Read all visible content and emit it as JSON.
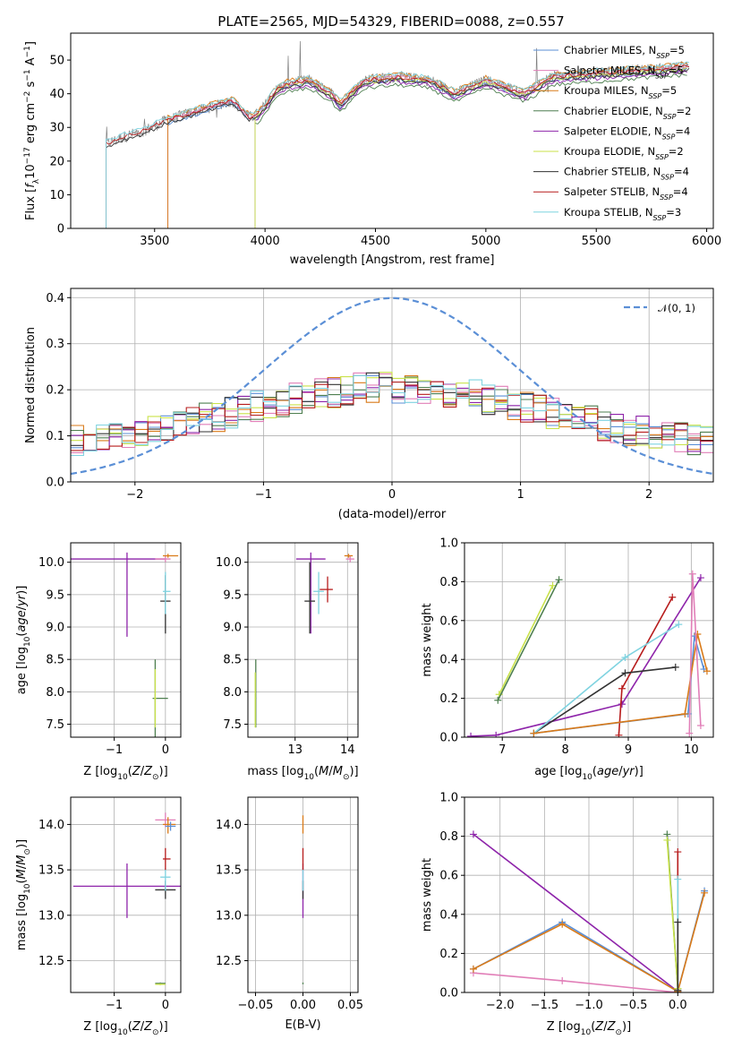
{
  "figure_title": "PLATE=2565, MJD=54329, FIBERID=0088, z=0.557",
  "palette": {
    "Chabrier MILES": "#5b8fd6",
    "Salpeter MILES": "#e17fb8",
    "Kroupa MILES": "#d97a18",
    "Chabrier ELODIE": "#4e7f50",
    "Salpeter ELODIE": "#8e24aa",
    "Kroupa ELODIE": "#c9e24a",
    "Chabrier STELIB": "#333333",
    "Salpeter STELIB": "#b71c1c",
    "Kroupa STELIB": "#7fd3e0"
  },
  "chart_data": [
    {
      "id": "spectrum",
      "type": "line",
      "title": "PLATE=2565, MJD=54329, FIBERID=0088, z=0.557",
      "xlabel": "wavelength [Angstrom, rest frame]",
      "ylabel": "Flux [f_λ 10^-17 erg cm^-2 s^-1 A^-1]",
      "xlim": [
        3120,
        6030
      ],
      "ylim": [
        0,
        58
      ],
      "xticks": [
        3500,
        4000,
        4500,
        5000,
        5500,
        6000
      ],
      "yticks": [
        0,
        10,
        20,
        30,
        40,
        50
      ],
      "grid": false,
      "legend": "top-right",
      "legend_entries": [
        {
          "text": "Chabrier MILES, N_SSP=5",
          "base": "Chabrier MILES, N",
          "sub": "SSP",
          "tail": "=5",
          "model": "Chabrier MILES"
        },
        {
          "text": "Salpeter MILES, N_SSP=5",
          "base": "Salpeter MILES, N",
          "sub": "SSP",
          "tail": "=5",
          "model": "Salpeter MILES"
        },
        {
          "text": "Kroupa MILES, N_SSP=5",
          "base": "Kroupa MILES, N",
          "sub": "SSP",
          "tail": "=5",
          "model": "Kroupa MILES"
        },
        {
          "text": "Chabrier ELODIE, N_SSP=2",
          "base": "Chabrier ELODIE, N",
          "sub": "SSP",
          "tail": "=2",
          "model": "Chabrier ELODIE"
        },
        {
          "text": "Salpeter ELODIE, N_SSP=4",
          "base": "Salpeter ELODIE, N",
          "sub": "SSP",
          "tail": "=4",
          "model": "Salpeter ELODIE"
        },
        {
          "text": "Kroupa ELODIE, N_SSP=2",
          "base": "Kroupa ELODIE, N",
          "sub": "SSP",
          "tail": "=2",
          "model": "Kroupa ELODIE"
        },
        {
          "text": "Chabrier STELIB, N_SSP=4",
          "base": "Chabrier STELIB, N",
          "sub": "SSP",
          "tail": "=4",
          "model": "Chabrier STELIB"
        },
        {
          "text": "Salpeter STELIB, N_SSP=4",
          "base": "Salpeter STELIB, N",
          "sub": "SSP",
          "tail": "=4",
          "model": "Salpeter STELIB"
        },
        {
          "text": "Kroupa STELIB, N_SSP=3",
          "base": "Kroupa STELIB, N",
          "sub": "SSP",
          "tail": "=3",
          "model": "Kroupa STELIB"
        }
      ],
      "data_start_x": [
        {
          "model": "MILES",
          "x": 3560
        },
        {
          "model": "ELODIE",
          "x": 3955
        },
        {
          "model": "STELIB",
          "x": 3280
        }
      ],
      "continuum_points": [
        {
          "x": 3280,
          "y": 25
        },
        {
          "x": 3350,
          "y": 27
        },
        {
          "x": 3450,
          "y": 29
        },
        {
          "x": 3550,
          "y": 32
        },
        {
          "x": 3650,
          "y": 34
        },
        {
          "x": 3750,
          "y": 36
        },
        {
          "x": 3850,
          "y": 38
        },
        {
          "x": 3930,
          "y": 33
        },
        {
          "x": 3970,
          "y": 34
        },
        {
          "x": 4050,
          "y": 41
        },
        {
          "x": 4100,
          "y": 43
        },
        {
          "x": 4200,
          "y": 44
        },
        {
          "x": 4300,
          "y": 40
        },
        {
          "x": 4340,
          "y": 37
        },
        {
          "x": 4450,
          "y": 44
        },
        {
          "x": 4600,
          "y": 45
        },
        {
          "x": 4750,
          "y": 44
        },
        {
          "x": 4861,
          "y": 40
        },
        {
          "x": 5000,
          "y": 44
        },
        {
          "x": 5175,
          "y": 40
        },
        {
          "x": 5300,
          "y": 45
        },
        {
          "x": 5500,
          "y": 46
        },
        {
          "x": 5700,
          "y": 47
        },
        {
          "x": 5900,
          "y": 48
        }
      ]
    },
    {
      "id": "residuals",
      "type": "bar",
      "xlabel": "(data-model)/error",
      "ylabel": "Normed distribution",
      "xlim": [
        -2.5,
        2.5
      ],
      "ylim": [
        0,
        0.42
      ],
      "xticks": [
        -2,
        -1,
        0,
        1,
        2
      ],
      "yticks": [
        0.0,
        0.1,
        0.2,
        0.3,
        0.4
      ],
      "grid": true,
      "legend": "top-right",
      "legend_label": "𝒩(0, 1)",
      "reference_curve": {
        "name": "𝒩(0, 1)",
        "mean": 0,
        "sigma": 1,
        "style": "dashed"
      },
      "bins": 50
    },
    {
      "id": "age-vs-Z",
      "type": "scatter",
      "xlabel": "Z [log10(Z/Z⊙)]",
      "ylabel": "age [log10(age/yr)]",
      "xlim": [
        -1.85,
        0.3
      ],
      "ylim": [
        7.3,
        10.3
      ],
      "xticks": [
        -1,
        0
      ],
      "yticks": [
        7.5,
        8.0,
        8.5,
        9.0,
        9.5,
        10.0
      ],
      "grid": true,
      "points": [
        {
          "model": "Salpeter ELODIE",
          "x": -0.75,
          "y": 10.05,
          "xerr": [
            1.75,
            0.75
          ],
          "yerr": [
            1.2,
            0.1
          ]
        },
        {
          "model": "Chabrier STELIB",
          "x": 0.0,
          "y": 9.4,
          "xerr": [
            0.1,
            0.1
          ],
          "yerr": [
            0.5,
            0.4
          ]
        },
        {
          "model": "Kroupa STELIB",
          "x": 0.0,
          "y": 9.55,
          "xerr": [
            0.05,
            0.1
          ],
          "yerr": [
            0.35,
            0.3
          ]
        },
        {
          "model": "Salpeter MILES",
          "x": 0.0,
          "y": 10.05,
          "xerr": [
            0.2,
            0.1
          ],
          "yerr": [
            0.05,
            0.05
          ]
        },
        {
          "model": "Kroupa MILES",
          "x": 0.05,
          "y": 10.1,
          "xerr": [
            0.1,
            0.2
          ],
          "yerr": [
            0.03,
            0.03
          ]
        },
        {
          "model": "Chabrier ELODIE",
          "x": -0.2,
          "y": 7.9,
          "xerr": [
            0.05,
            0.25
          ],
          "yerr": [
            0.6,
            0.6
          ]
        },
        {
          "model": "Kroupa ELODIE",
          "x": -0.2,
          "y": 7.9,
          "xerr": [
            0.02,
            0.02
          ],
          "yerr": [
            0.45,
            0.45
          ]
        }
      ]
    },
    {
      "id": "age-vs-mass",
      "type": "scatter",
      "xlabel": "mass [log10(M/M⊙)]",
      "ylabel": "",
      "xlim": [
        12.1,
        14.2
      ],
      "ylim": [
        7.3,
        10.3
      ],
      "xticks": [
        13,
        14
      ],
      "yticks": [
        7.5,
        8.0,
        8.5,
        9.0,
        9.5,
        10.0
      ],
      "grid": true,
      "points": [
        {
          "model": "Salpeter ELODIE",
          "x": 13.3,
          "y": 10.05,
          "xerr": [
            0.28,
            0.28
          ],
          "yerr": [
            1.15,
            0.1
          ]
        },
        {
          "model": "Chabrier STELIB",
          "x": 13.28,
          "y": 9.4,
          "xerr": [
            0.1,
            0.1
          ],
          "yerr": [
            0.5,
            0.6
          ]
        },
        {
          "model": "Kroupa STELIB",
          "x": 13.45,
          "y": 9.55,
          "xerr": [
            0.1,
            0.1
          ],
          "yerr": [
            0.35,
            0.3
          ]
        },
        {
          "model": "Salpeter STELIB",
          "x": 13.62,
          "y": 9.58,
          "xerr": [
            0.15,
            0.1
          ],
          "yerr": [
            0.2,
            0.2
          ]
        },
        {
          "model": "Salpeter MILES",
          "x": 14.05,
          "y": 10.05,
          "xerr": [
            0.08,
            0.08
          ],
          "yerr": [
            0.05,
            0.05
          ]
        },
        {
          "model": "Kroupa MILES",
          "x": 14.02,
          "y": 10.1,
          "xerr": [
            0.08,
            0.08
          ],
          "yerr": [
            0.03,
            0.03
          ]
        },
        {
          "model": "Chabrier ELODIE",
          "x": 12.25,
          "y": 7.9,
          "xerr": [
            0.01,
            0.01
          ],
          "yerr": [
            0.45,
            0.6
          ]
        },
        {
          "model": "Kroupa ELODIE",
          "x": 12.24,
          "y": 7.9,
          "xerr": [
            0.01,
            0.01
          ],
          "yerr": [
            0.45,
            0.4
          ]
        }
      ]
    },
    {
      "id": "massweight-vs-age",
      "type": "line",
      "xlabel": "age [log10(age/yr)]",
      "ylabel": "mass weight",
      "xlim": [
        6.4,
        10.35
      ],
      "ylim": [
        0,
        1
      ],
      "xticks": [
        7,
        8,
        9,
        10
      ],
      "yticks": [
        0.0,
        0.2,
        0.4,
        0.6,
        0.8,
        1.0
      ],
      "grid": true,
      "series": [
        {
          "model": "Kroupa ELODIE",
          "x": [
            6.95,
            7.8
          ],
          "y": [
            0.22,
            0.78
          ]
        },
        {
          "model": "Chabrier ELODIE",
          "x": [
            6.93,
            7.9
          ],
          "y": [
            0.19,
            0.81
          ]
        },
        {
          "model": "Salpeter ELODIE",
          "x": [
            6.5,
            6.9,
            8.9,
            10.15
          ],
          "y": [
            0.005,
            0.01,
            0.17,
            0.82
          ]
        },
        {
          "model": "Salpeter STELIB",
          "x": [
            8.85,
            8.9,
            9.7
          ],
          "y": [
            0.01,
            0.25,
            0.72
          ]
        },
        {
          "model": "Chabrier STELIB",
          "x": [
            7.5,
            8.95,
            9.75
          ],
          "y": [
            0.02,
            0.33,
            0.36
          ]
        },
        {
          "model": "Kroupa STELIB",
          "x": [
            7.5,
            8.95,
            9.8
          ],
          "y": [
            0.02,
            0.41,
            0.58
          ]
        },
        {
          "model": "Chabrier MILES",
          "x": [
            7.5,
            9.95,
            10.05,
            10.2
          ],
          "y": [
            0.02,
            0.12,
            0.52,
            0.35
          ]
        },
        {
          "model": "Kroupa MILES",
          "x": [
            7.5,
            9.9,
            10.1,
            10.25
          ],
          "y": [
            0.02,
            0.12,
            0.53,
            0.34
          ]
        },
        {
          "model": "Salpeter MILES",
          "x": [
            9.97,
            10.02,
            10.15
          ],
          "y": [
            0.02,
            0.84,
            0.06
          ]
        }
      ]
    },
    {
      "id": "mass-vs-Z",
      "type": "scatter",
      "xlabel": "Z [log10(Z/Z⊙)]",
      "ylabel": "mass [log10(M/M⊙)]",
      "xlim": [
        -1.85,
        0.3
      ],
      "ylim": [
        12.15,
        14.3
      ],
      "xticks": [
        -1,
        0
      ],
      "yticks": [
        12.5,
        13.0,
        13.5,
        14.0
      ],
      "grid": true,
      "points": [
        {
          "model": "Salpeter ELODIE",
          "x": -0.75,
          "y": 13.32,
          "xerr": [
            1.05,
            1.05
          ],
          "yerr": [
            0.35,
            0.25
          ]
        },
        {
          "model": "Chabrier STELIB",
          "x": 0.0,
          "y": 13.28,
          "xerr": [
            0.2,
            0.2
          ],
          "yerr": [
            0.1,
            0.1
          ]
        },
        {
          "model": "Kroupa STELIB",
          "x": 0.0,
          "y": 13.42,
          "xerr": [
            0.1,
            0.1
          ],
          "yerr": [
            0.15,
            0.1
          ]
        },
        {
          "model": "Salpeter STELIB",
          "x": 0.0,
          "y": 13.62,
          "xerr": [
            0.05,
            0.1
          ],
          "yerr": [
            0.12,
            0.12
          ]
        },
        {
          "model": "Salpeter MILES",
          "x": 0.0,
          "y": 14.05,
          "xerr": [
            0.2,
            0.2
          ],
          "yerr": [
            0.08,
            0.08
          ]
        },
        {
          "model": "Kroupa MILES",
          "x": 0.05,
          "y": 14.0,
          "xerr": [
            0.1,
            0.15
          ],
          "yerr": [
            0.1,
            0.08
          ]
        },
        {
          "model": "Chabrier MILES",
          "x": 0.1,
          "y": 13.98,
          "xerr": [
            0.1,
            0.1
          ],
          "yerr": [
            0.05,
            0.05
          ]
        },
        {
          "model": "Chabrier ELODIE",
          "x": -0.1,
          "y": 12.25,
          "xerr": [
            0.1,
            0.1
          ],
          "yerr": [
            0.01,
            0.01
          ]
        },
        {
          "model": "Kroupa ELODIE",
          "x": -0.1,
          "y": 12.24,
          "xerr": [
            0.1,
            0.1
          ],
          "yerr": [
            0.01,
            0.01
          ]
        }
      ]
    },
    {
      "id": "mass-vs-EBV",
      "type": "scatter",
      "xlabel": "E(B-V)",
      "ylabel": "",
      "xlim": [
        -0.058,
        0.058
      ],
      "ylim": [
        12.15,
        14.3
      ],
      "xticks": [
        -0.05,
        0.0,
        0.05
      ],
      "xticklabels": [
        "−0.05",
        "0.00",
        "0.05"
      ],
      "yticks": [
        12.5,
        13.0,
        13.5,
        14.0
      ],
      "grid": true,
      "points": [
        {
          "model": "Salpeter ELODIE",
          "x": 0.0,
          "y": 13.32,
          "yerr": [
            0.35,
            0.25
          ]
        },
        {
          "model": "Chabrier STELIB",
          "x": 0.0,
          "y": 13.28,
          "yerr": [
            0.1,
            0.1
          ]
        },
        {
          "model": "Kroupa STELIB",
          "x": 0.0,
          "y": 13.42,
          "yerr": [
            0.15,
            0.1
          ]
        },
        {
          "model": "Salpeter STELIB",
          "x": 0.0,
          "y": 13.62,
          "yerr": [
            0.12,
            0.12
          ]
        },
        {
          "model": "Kroupa MILES",
          "x": 0.0,
          "y": 14.0,
          "yerr": [
            0.1,
            0.1
          ]
        },
        {
          "model": "Chabrier ELODIE",
          "x": 0.0,
          "y": 12.25,
          "yerr": [
            0.01,
            0.01
          ]
        }
      ]
    },
    {
      "id": "massweight-vs-Z",
      "type": "line",
      "xlabel": "Z [log10(Z/Z⊙)]",
      "ylabel": "mass weight",
      "xlim": [
        -2.4,
        0.4
      ],
      "ylim": [
        0,
        1
      ],
      "xticks": [
        -2.0,
        -1.5,
        -1.0,
        -0.5,
        0.0
      ],
      "xticklabels": [
        "−2.0",
        "−1.5",
        "−1.0",
        "−0.5",
        "0.0"
      ],
      "yticks": [
        0.0,
        0.2,
        0.4,
        0.6,
        0.8,
        1.0
      ],
      "grid": true,
      "series": [
        {
          "model": "Salpeter ELODIE",
          "x": [
            -2.3,
            0.0
          ],
          "y": [
            0.81,
            0.005
          ]
        },
        {
          "model": "Salpeter MILES",
          "x": [
            -2.3,
            -1.3,
            0.0
          ],
          "y": [
            0.1,
            0.06,
            0.0
          ]
        },
        {
          "model": "Chabrier MILES",
          "x": [
            -2.3,
            -1.3,
            0.0,
            0.3
          ],
          "y": [
            0.12,
            0.36,
            0.005,
            0.52
          ]
        },
        {
          "model": "Kroupa MILES",
          "x": [
            -2.3,
            -1.3,
            0.0,
            0.3
          ],
          "y": [
            0.12,
            0.35,
            0.005,
            0.51
          ]
        },
        {
          "model": "Chabrier ELODIE",
          "x": [
            -0.12,
            0.0
          ],
          "y": [
            0.81,
            0.02
          ]
        },
        {
          "model": "Kroupa ELODIE",
          "x": [
            -0.12,
            0.0
          ],
          "y": [
            0.78,
            0.02
          ]
        },
        {
          "model": "Salpeter STELIB",
          "x": [
            0.0,
            0.0
          ],
          "y": [
            0.72,
            0.01
          ]
        },
        {
          "model": "Kroupa STELIB",
          "x": [
            0.0,
            0.0
          ],
          "y": [
            0.58,
            0.01
          ]
        },
        {
          "model": "Chabrier STELIB",
          "x": [
            0.0,
            0.0
          ],
          "y": [
            0.36,
            0.01
          ]
        }
      ]
    }
  ]
}
